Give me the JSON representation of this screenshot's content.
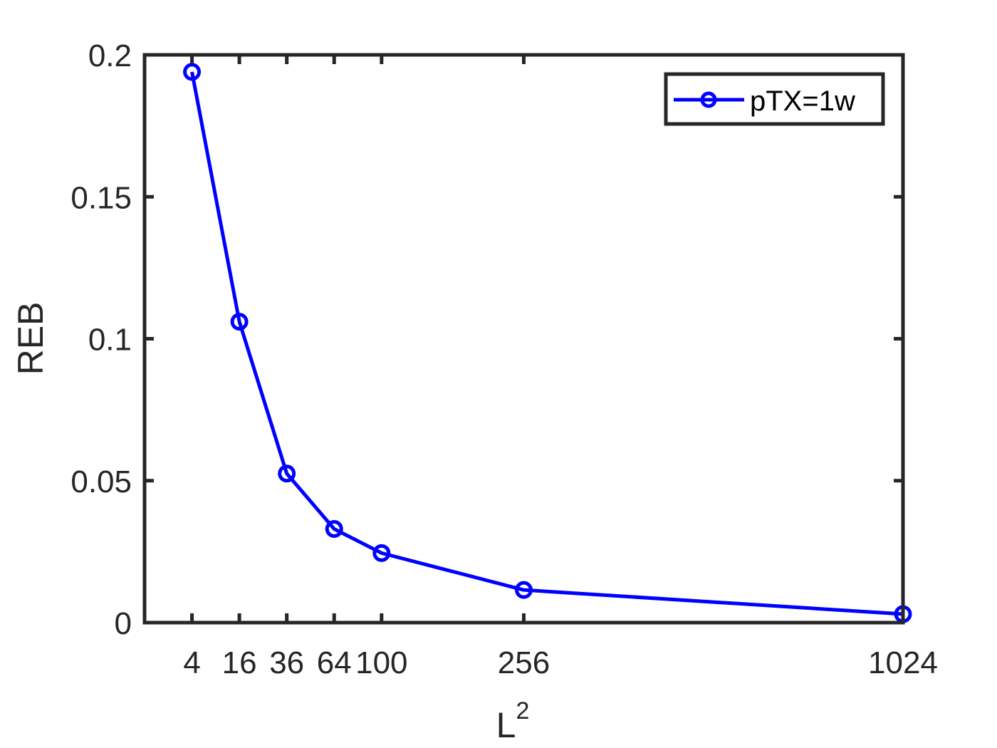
{
  "chart_data": {
    "type": "line",
    "xlabel": "L",
    "xlabel_superscript": "2",
    "ylabel": "REB",
    "xlim": [
      -16,
      1024
    ],
    "ylim": [
      0,
      0.2
    ],
    "x_ticks": [
      4,
      16,
      36,
      64,
      100,
      256,
      1024
    ],
    "x_tick_labels": [
      "4",
      "16",
      "36",
      "64",
      "100",
      "256",
      "1024"
    ],
    "y_ticks": [
      0,
      0.05,
      0.1,
      0.15,
      0.2
    ],
    "y_tick_labels": [
      "0",
      "0.05",
      "0.1",
      "0.15",
      "0.2"
    ],
    "grid": false,
    "box": true,
    "legend_position": "top-right",
    "series": [
      {
        "name": "pTX=1w",
        "color": "#0000ff",
        "marker": "circle",
        "x": [
          4,
          16,
          36,
          64,
          100,
          256,
          1024
        ],
        "x_positions": [
          1,
          2,
          3,
          4,
          5,
          8,
          16
        ],
        "y": [
          0.194,
          0.106,
          0.0525,
          0.033,
          0.0245,
          0.0115,
          0.003
        ]
      }
    ]
  }
}
